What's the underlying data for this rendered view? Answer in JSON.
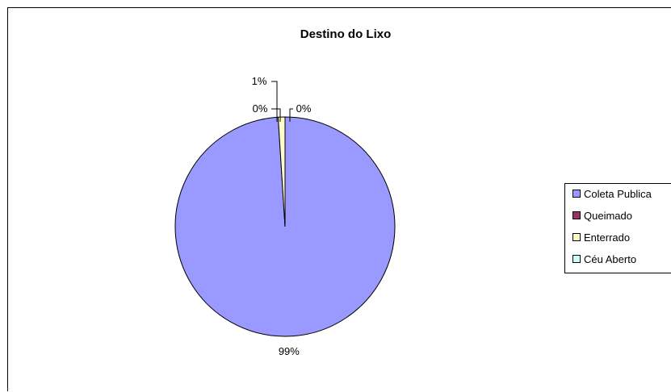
{
  "chart_data": {
    "type": "pie",
    "title": "Destino do Lixo",
    "slices": [
      {
        "label": "Coleta Publica",
        "value": 99,
        "display": "99%",
        "color": "#9999ff"
      },
      {
        "label": "Queimado",
        "value": 0.0,
        "display": "0%",
        "color": "#993366"
      },
      {
        "label": "Enterrado",
        "value": 1,
        "display": "1%",
        "color": "#ffffcc"
      },
      {
        "label": "Céu Aberto",
        "value": 0.0,
        "display": "0%",
        "color": "#ccffff"
      }
    ],
    "legend_position": "right"
  }
}
